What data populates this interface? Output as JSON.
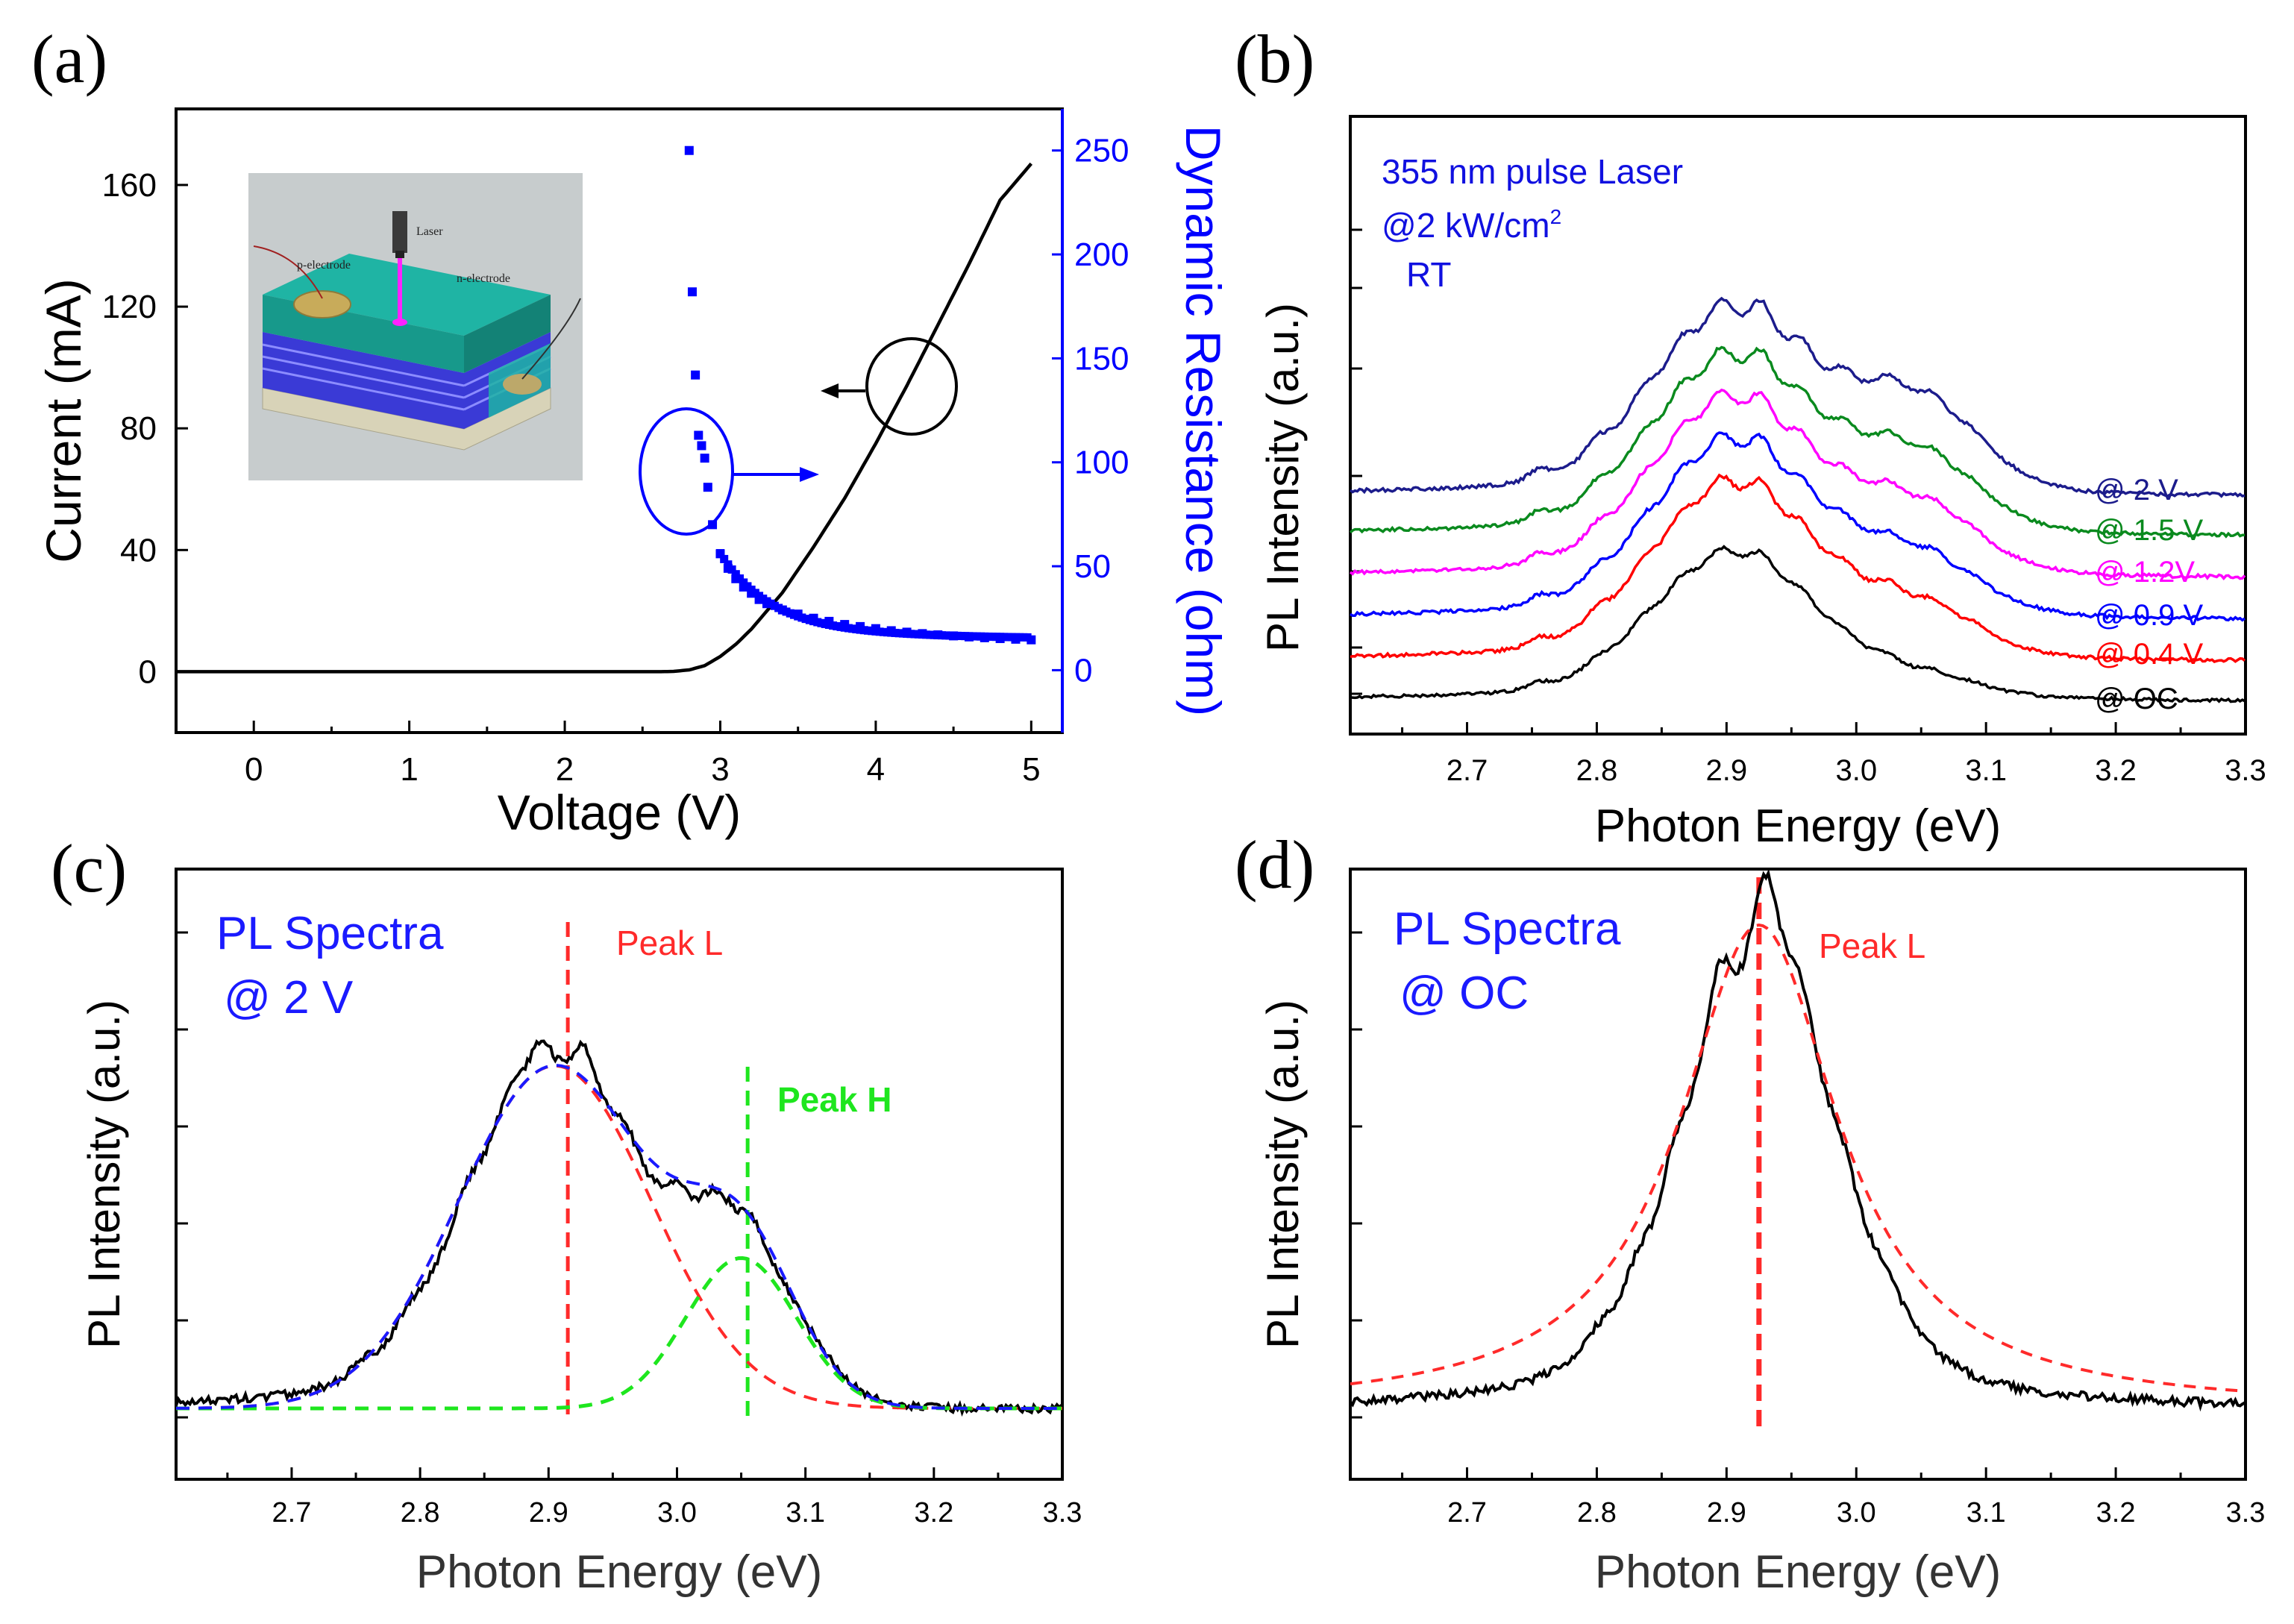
{
  "colors": {
    "black": "#000000",
    "blue": "#0000ff",
    "navy": "#1c1c8c",
    "green": "#0a8a1e",
    "magenta": "#ff00ff",
    "red": "#ff0000",
    "fitred": "#ff2a2a",
    "fitgreen": "#1ee61e",
    "teal": "#20b0a0"
  },
  "chart_data": [
    {
      "panel": "(a)",
      "type": "line",
      "xlabel": "Voltage (V)",
      "ylabel": "Current (mA)",
      "y2label": "Dynamic Resistance (ohm)",
      "xlim": [
        -0.5,
        5.2
      ],
      "ylim": [
        -20,
        185
      ],
      "y2lim": [
        -30,
        270
      ],
      "xticks": [
        "0",
        "1",
        "2",
        "3",
        "4",
        "5"
      ],
      "yticks": [
        "0",
        "40",
        "80",
        "120",
        "160"
      ],
      "y2ticks": [
        "0",
        "50",
        "100",
        "150",
        "200",
        "250"
      ],
      "series": [
        {
          "name": "Current",
          "axis": "left",
          "style": "line",
          "x": [
            -0.5,
            2.6,
            2.7,
            2.8,
            2.9,
            3.0,
            3.1,
            3.2,
            3.4,
            3.6,
            3.8,
            4.0,
            4.2,
            4.4,
            4.6,
            4.8,
            5.0
          ],
          "y": [
            0,
            0,
            0.1,
            0.6,
            2,
            5,
            9,
            14,
            26,
            41,
            57,
            75,
            94,
            114,
            134,
            155,
            167
          ]
        },
        {
          "name": "Dynamic Resistance",
          "axis": "right",
          "style": "points",
          "x": [
            2.8,
            2.82,
            2.84,
            2.86,
            2.88,
            2.9,
            2.92,
            2.95,
            3.0,
            3.05,
            3.1,
            3.15,
            3.2,
            3.25,
            3.3,
            3.4,
            3.5,
            3.6,
            3.7,
            3.8,
            3.9,
            4.0,
            4.1,
            4.2,
            4.3,
            4.4,
            4.5,
            4.6,
            4.7,
            4.8,
            4.9,
            5.0
          ],
          "y": [
            250,
            182,
            142,
            113,
            108,
            102,
            88,
            70,
            56,
            49,
            44,
            40,
            37,
            34,
            32,
            29,
            27,
            25,
            23.5,
            22,
            21,
            20,
            19,
            18.3,
            17.6,
            17,
            16.5,
            16,
            15.6,
            15.2,
            14.9,
            14.6
          ]
        }
      ],
      "annotations": {
        "inset_labels": [
          "Laser",
          "p-electrode",
          "n-electrode"
        ]
      }
    },
    {
      "panel": "(b)",
      "type": "line",
      "xlabel": "Photon Energy (eV)",
      "ylabel": "PL Intensity (a.u.)",
      "xlim": [
        2.61,
        3.3
      ],
      "xticks": [
        "2.7",
        "2.8",
        "2.9",
        "3.0",
        "3.1",
        "3.2",
        "3.3"
      ],
      "annotations": [
        "355 nm pulse Laser",
        "@2 kW/cm",
        "2",
        "RT"
      ],
      "series": [
        {
          "name": "@ OC",
          "offset": 0
        },
        {
          "name": "@ 0.4 V",
          "offset": 1
        },
        {
          "name": "@ 0.9 V",
          "offset": 2
        },
        {
          "name": "@ 1.2V",
          "offset": 3
        },
        {
          "name": "@ 1.5 V",
          "offset": 4
        },
        {
          "name": "@ 2 V",
          "offset": 5
        }
      ]
    },
    {
      "panel": "(c)",
      "type": "line",
      "xlabel": "Photon Energy (eV)",
      "ylabel": "PL Intensity (a.u.)",
      "xlim": [
        2.61,
        3.3
      ],
      "xticks": [
        "2.7",
        "2.8",
        "2.9",
        "3.0",
        "3.1",
        "3.2",
        "3.3"
      ],
      "annotations": [
        "PL Spectra",
        "@ 2 V",
        "Peak L",
        "Peak H"
      ],
      "peak_L_eV": 2.915,
      "peak_H_eV": 3.055,
      "series": [
        {
          "name": "Measured",
          "style": "solid"
        },
        {
          "name": "Peak L fit",
          "style": "dashed",
          "center": 2.905,
          "amplitude": 0.82
        },
        {
          "name": "Peak H fit",
          "style": "dashed",
          "center": 3.05,
          "amplitude": 0.36
        },
        {
          "name": "Sum fit",
          "style": "dashed"
        }
      ]
    },
    {
      "panel": "(d)",
      "type": "line",
      "xlabel": "Photon Energy (eV)",
      "ylabel": "PL Intensity (a.u.)",
      "xlim": [
        2.61,
        3.3
      ],
      "xticks": [
        "2.7",
        "2.8",
        "2.9",
        "3.0",
        "3.1",
        "3.2",
        "3.3"
      ],
      "annotations": [
        "PL Spectra",
        "@ OC",
        "Peak L"
      ],
      "peak_L_eV": 2.925,
      "series": [
        {
          "name": "Measured",
          "style": "solid"
        },
        {
          "name": "Peak L fit",
          "style": "dashed",
          "center": 2.925
        }
      ]
    }
  ]
}
